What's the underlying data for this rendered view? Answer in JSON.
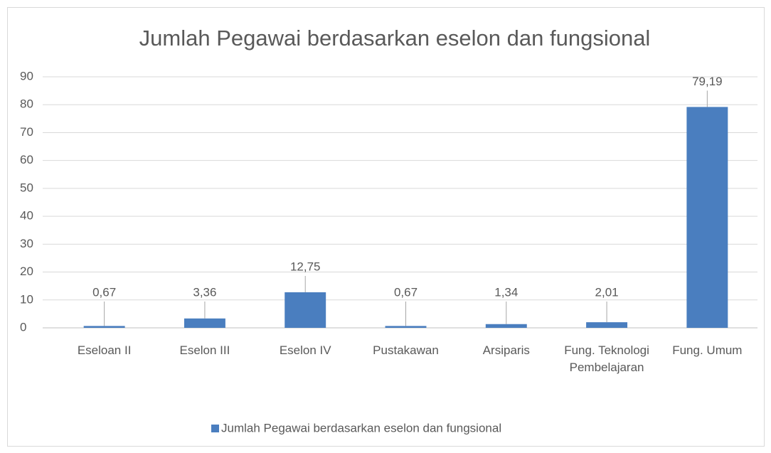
{
  "chart_data": {
    "type": "bar",
    "title": "Jumlah Pegawai berdasarkan eselon dan fungsional",
    "categories": [
      "Eseloan II",
      "Eselon III",
      "Eselon IV",
      "Pustakawan",
      "Arsiparis",
      "Fung. Teknologi Pembelajaran",
      "Fung. Umum"
    ],
    "series": [
      {
        "name": "Jumlah Pegawai berdasarkan eselon dan fungsional",
        "color": "#4a7ebf",
        "values": [
          0.67,
          3.36,
          12.75,
          0.67,
          1.34,
          2.01,
          79.19
        ],
        "value_labels": [
          "0,67",
          "3,36",
          "12,75",
          "0,67",
          "1,34",
          "2,01",
          "79,19"
        ]
      }
    ],
    "ylim": [
      0,
      90
    ],
    "yticks": [
      0,
      10,
      20,
      30,
      40,
      50,
      60,
      70,
      80,
      90
    ],
    "grid": true,
    "legend": "bottom"
  }
}
